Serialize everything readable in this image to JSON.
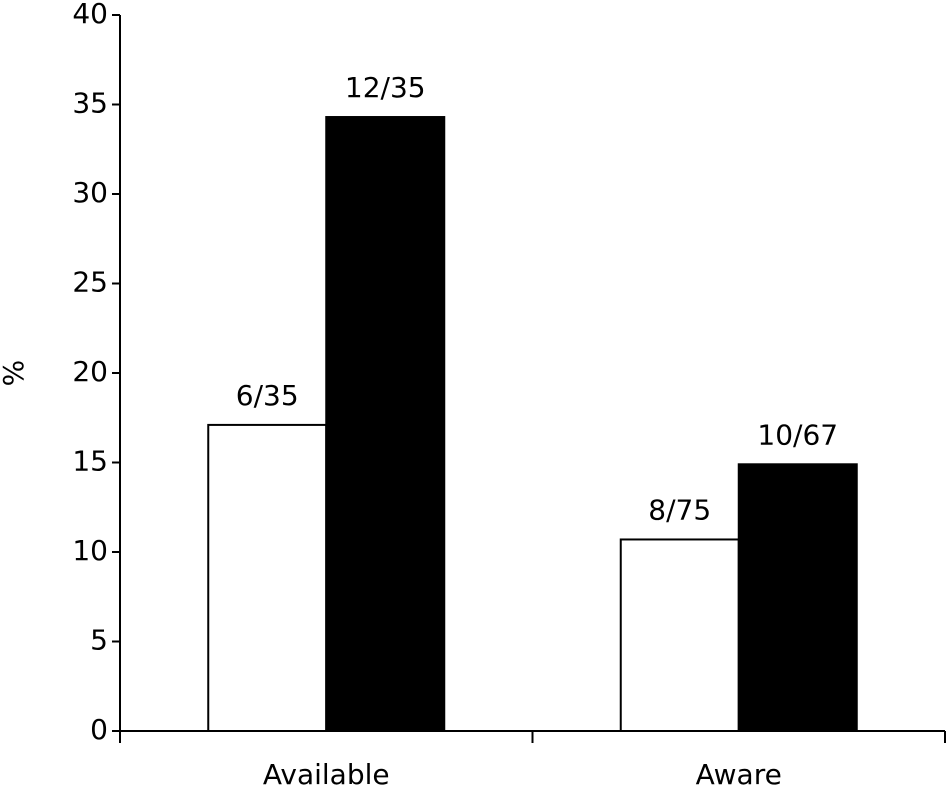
{
  "chart_data": {
    "type": "bar",
    "y_label": "%",
    "categories": [
      "Available",
      "Aware"
    ],
    "series": [
      {
        "color": "#ffffff",
        "values": [
          17.1,
          10.7
        ],
        "value_labels": [
          "6/35",
          "8/75"
        ]
      },
      {
        "color": "#000000",
        "values": [
          34.3,
          14.9
        ],
        "value_labels": [
          "12/35",
          "10/67"
        ]
      }
    ],
    "ylim": [
      0,
      40
    ],
    "yticks": [
      0,
      5,
      10,
      15,
      20,
      25,
      30,
      35,
      40
    ],
    "grid": false
  }
}
